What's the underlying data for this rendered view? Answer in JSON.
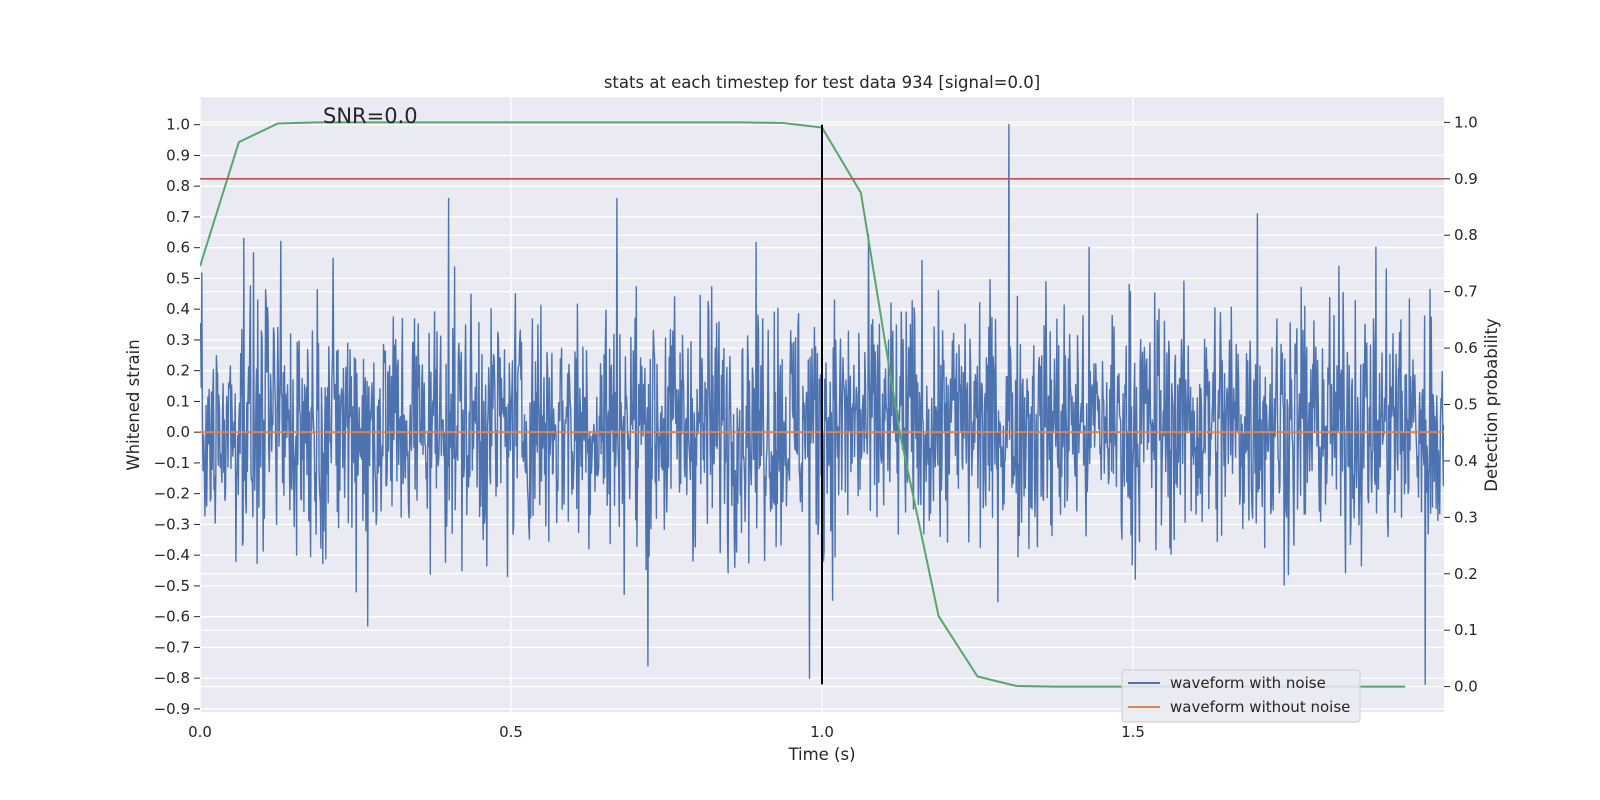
{
  "chart_data": {
    "type": "line",
    "title": "stats at each timestep for test data 934 [signal=0.0]",
    "annotation": "SNR=0.0",
    "xlabel": "Time (s)",
    "ylabel": "Whitened strain",
    "y2label": "Detection probability",
    "xlim": [
      0.0,
      2.0
    ],
    "ylim": [
      -0.91,
      1.09
    ],
    "y2lim": [
      -0.045,
      1.045
    ],
    "x_ticks": [
      0.0,
      0.5,
      1.0,
      1.5
    ],
    "x_tick_labels": [
      "0.0",
      "0.5",
      "1.0",
      "1.5"
    ],
    "y_ticks": [
      1.0,
      0.9,
      0.8,
      0.7,
      0.6,
      0.5,
      0.4,
      0.3,
      0.2,
      0.1,
      0.0,
      -0.1,
      -0.2,
      -0.3,
      -0.4,
      -0.5,
      -0.6,
      -0.7,
      -0.8,
      -0.9
    ],
    "y_tick_labels": [
      "1.0",
      "0.9",
      "0.8",
      "0.7",
      "0.6",
      "0.5",
      "0.4",
      "0.3",
      "0.2",
      "0.1",
      "0.0",
      "−0.1",
      "−0.2",
      "−0.3",
      "−0.4",
      "−0.5",
      "−0.6",
      "−0.7",
      "−0.8",
      "−0.9"
    ],
    "y2_ticks": [
      1.0,
      0.9,
      0.8,
      0.7,
      0.6,
      0.5,
      0.4,
      0.3,
      0.2,
      0.1,
      0.0
    ],
    "y2_tick_labels": [
      "1.0",
      "0.9",
      "0.8",
      "0.7",
      "0.6",
      "0.5",
      "0.4",
      "0.3",
      "0.2",
      "0.1",
      "0.0"
    ],
    "grid": true,
    "legend_position": "bottom-right",
    "series": [
      {
        "name": "waveform with noise",
        "color": "#4c72b0",
        "description_of_shape": "dense noise",
        "x_range": [
          0.0,
          2.0
        ],
        "spikes": [
          {
            "x": 0.07,
            "y": 0.63
          },
          {
            "x": 0.13,
            "y": 0.62
          },
          {
            "x": 0.27,
            "y": -0.63
          },
          {
            "x": 0.4,
            "y": 0.76
          },
          {
            "x": 0.67,
            "y": 0.76
          },
          {
            "x": 0.72,
            "y": -0.76
          },
          {
            "x": 0.98,
            "y": -0.8
          },
          {
            "x": 1.3,
            "y": 1.0
          },
          {
            "x": 1.7,
            "y": 0.71
          },
          {
            "x": 1.97,
            "y": -0.82
          }
        ]
      },
      {
        "name": "waveform without noise",
        "color": "#dd8452",
        "x": [
          0.0,
          2.0
        ],
        "y": [
          0.0,
          0.0
        ]
      },
      {
        "name": "",
        "color": "#55a868",
        "axis": "right",
        "x": [
          0.0,
          0.0625,
          0.125,
          0.1875,
          0.25,
          0.3125,
          0.375,
          0.4375,
          0.5,
          0.5625,
          0.625,
          0.6875,
          0.75,
          0.8125,
          0.875,
          0.9375,
          1.0,
          1.0625,
          1.125,
          1.1875,
          1.25,
          1.3125,
          1.375,
          1.4375,
          1.5,
          1.5625,
          1.625,
          1.6875,
          1.75,
          1.8125,
          1.875,
          1.9375
        ],
        "y": [
          0.745,
          0.965,
          0.998,
          1.0,
          1.0,
          1.0,
          1.0,
          1.0,
          1.0,
          1.0,
          1.0,
          1.0,
          1.0,
          1.0,
          1.0,
          0.999,
          0.991,
          0.875,
          0.45,
          0.125,
          0.018,
          0.001,
          0.0,
          0.0,
          0.0,
          0.0,
          0.0,
          0.0,
          0.0,
          0.0,
          0.0,
          0.0
        ]
      }
    ],
    "threshold_line": {
      "axis": "right",
      "y": 0.9,
      "color": "#c44e52"
    },
    "event_line": {
      "x": 1.0,
      "y_from": -0.82,
      "y_to": 1.0,
      "color": "#000000"
    }
  }
}
